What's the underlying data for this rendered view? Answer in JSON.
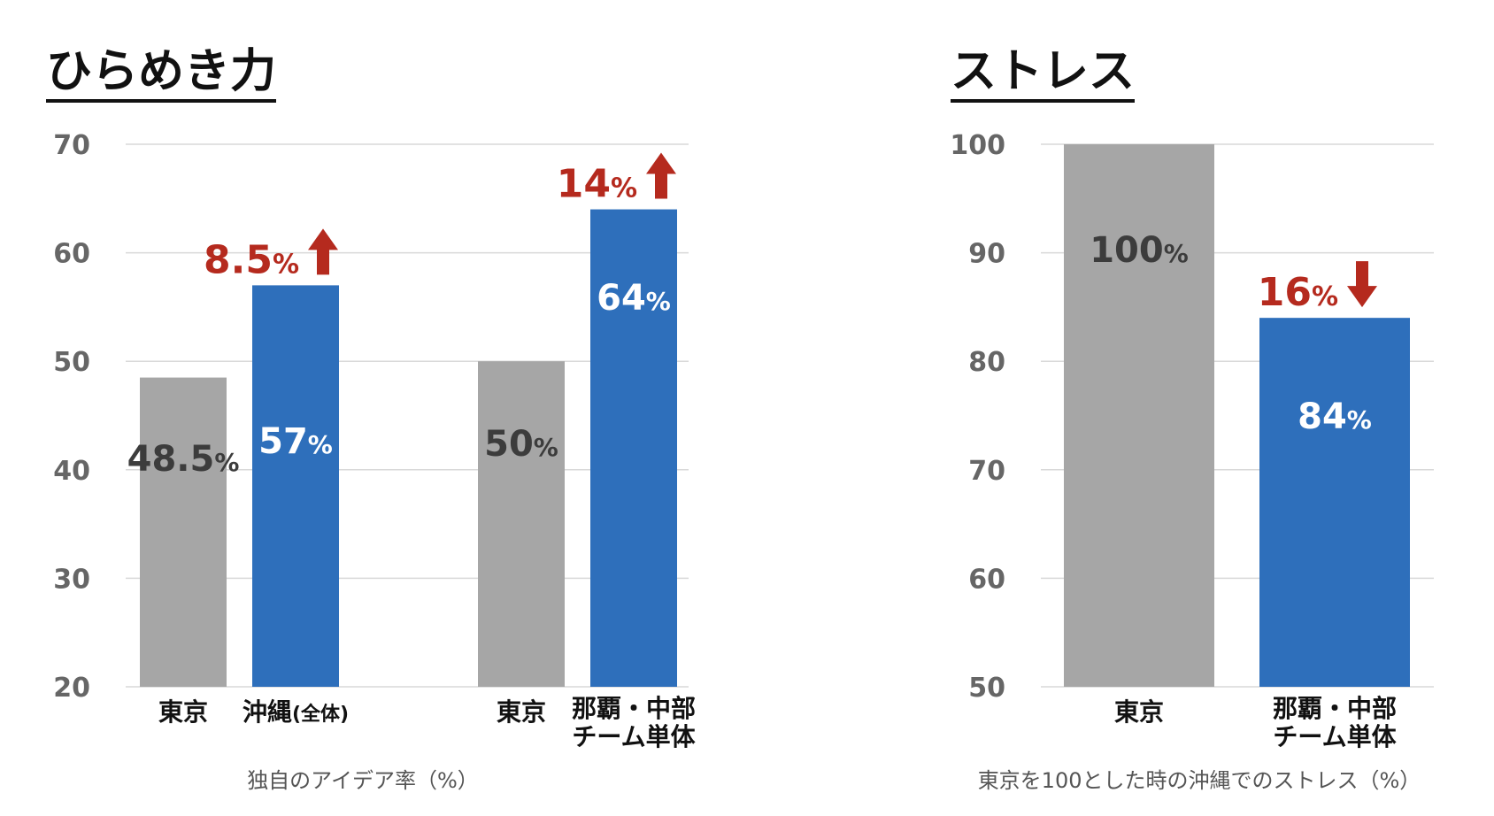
{
  "colors": {
    "gray_bar": "#a6a6a6",
    "blue_bar": "#2e6fbb",
    "delta_red": "#b52a1e",
    "gray_label": "#3c3c3c",
    "blue_label": "#ffffff",
    "grid": "#d9d9d9"
  },
  "icons": {
    "up": "arrow-up-icon",
    "down": "arrow-down-icon"
  },
  "chart_data": [
    {
      "type": "bar",
      "title": "ひらめき力",
      "xlabel": "独自のアイデア率（%）",
      "ylim": [
        20,
        70
      ],
      "yticks": [
        20,
        30,
        40,
        50,
        60,
        70
      ],
      "grid": true,
      "bars": [
        {
          "category_lines": [
            "東京"
          ],
          "value": 48.5,
          "value_text": "48.5",
          "unit": "%",
          "color": "gray"
        },
        {
          "category_lines": [
            "沖縄"
          ],
          "category_small": "(全体)",
          "value": 57,
          "value_text": "57",
          "unit": "%",
          "color": "blue",
          "delta": {
            "text": "8.5",
            "unit": "%",
            "direction": "up"
          }
        },
        {
          "category_lines": [
            "東京"
          ],
          "value": 50,
          "value_text": "50",
          "unit": "%",
          "color": "gray"
        },
        {
          "category_lines": [
            "那覇・中部",
            "チーム単体"
          ],
          "value": 64,
          "value_text": "64",
          "unit": "%",
          "color": "blue",
          "delta": {
            "text": "14",
            "unit": "%",
            "direction": "up"
          }
        }
      ]
    },
    {
      "type": "bar",
      "title": "ストレス",
      "xlabel": "東京を100とした時の沖縄でのストレス（%）",
      "ylim": [
        50,
        100
      ],
      "yticks": [
        50,
        60,
        70,
        80,
        90,
        100
      ],
      "grid": true,
      "bars": [
        {
          "category_lines": [
            "東京"
          ],
          "value": 100,
          "value_text": "100",
          "unit": "%",
          "color": "gray"
        },
        {
          "category_lines": [
            "那覇・中部",
            "チーム単体"
          ],
          "value": 84,
          "value_text": "84",
          "unit": "%",
          "color": "blue",
          "delta": {
            "text": "16",
            "unit": "%",
            "direction": "down"
          }
        }
      ]
    }
  ]
}
